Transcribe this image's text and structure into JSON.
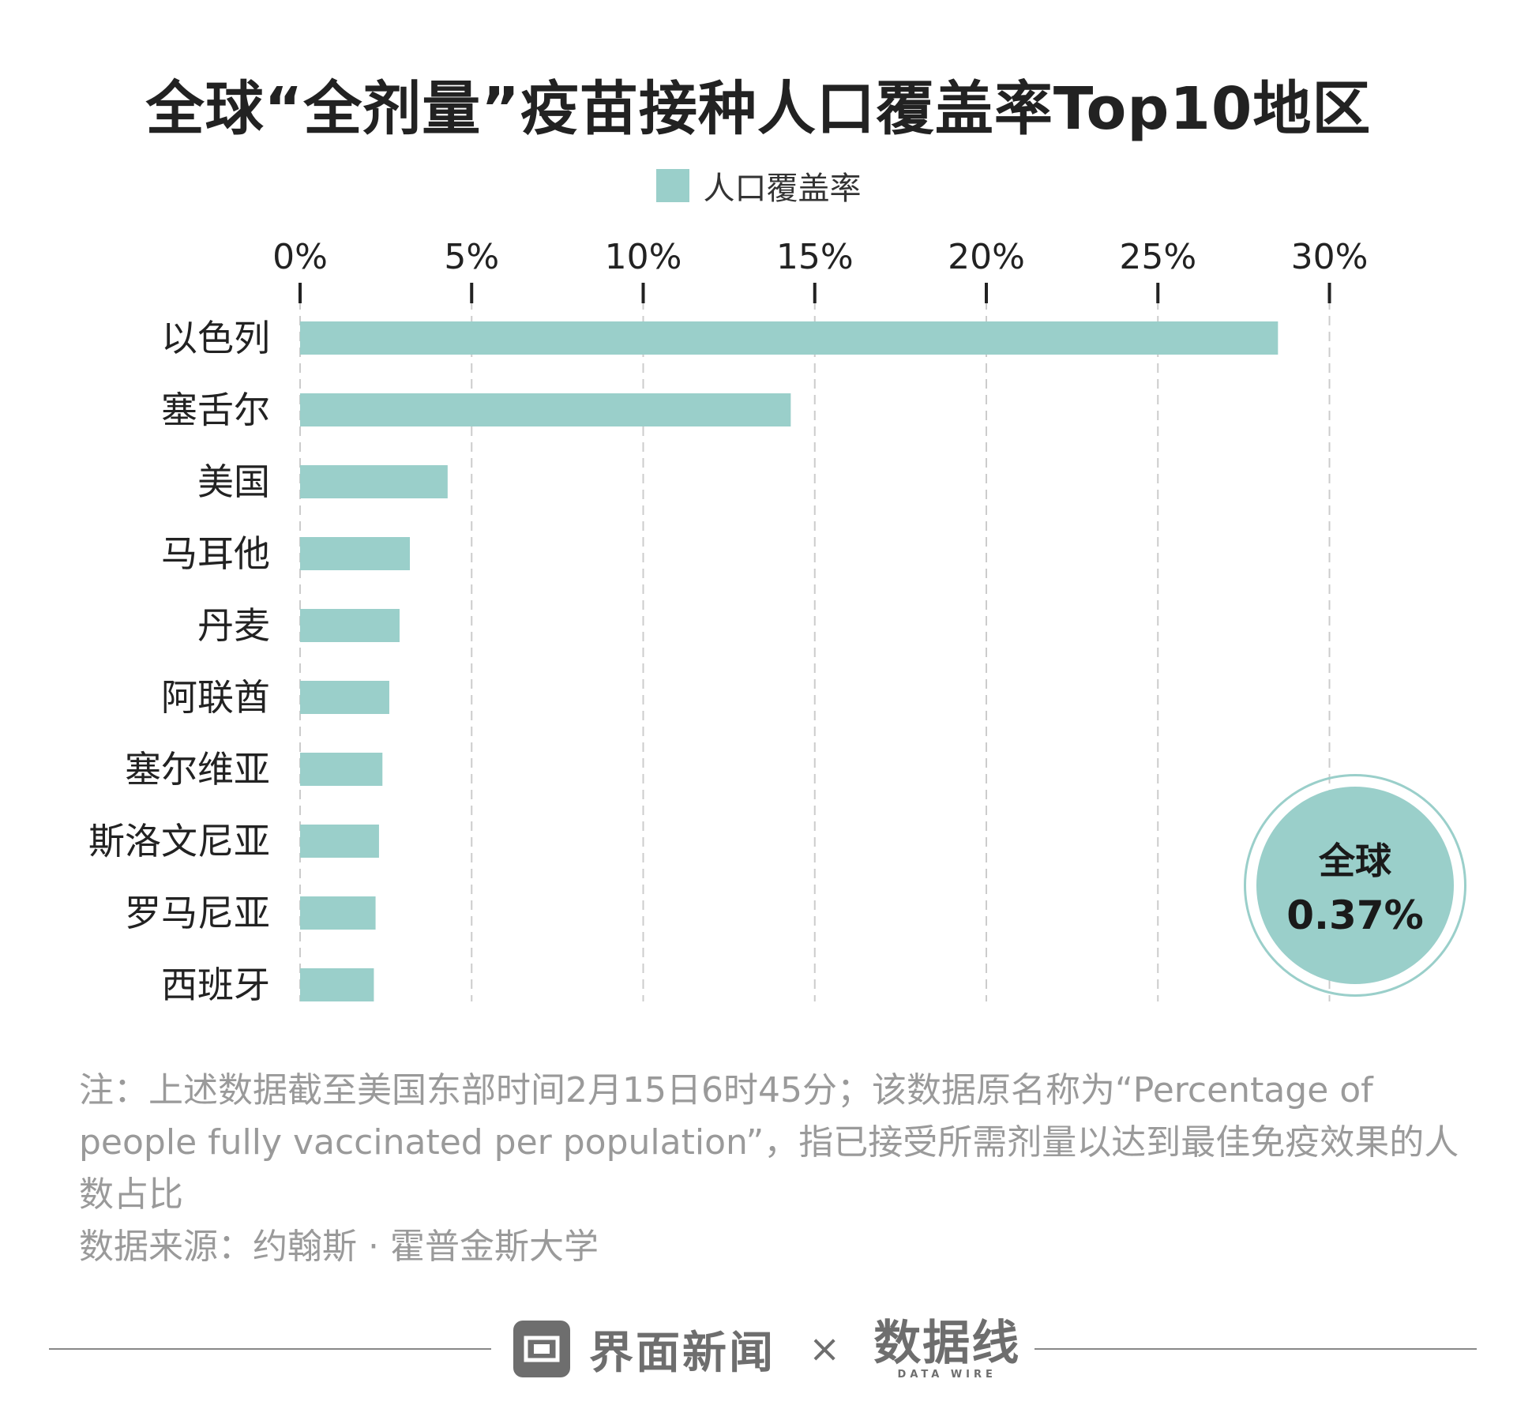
{
  "title": "全球“全剂量”疫苗接种人口覆盖率Top10地区",
  "chart_data": {
    "type": "bar",
    "orientation": "horizontal",
    "categories": [
      "以色列",
      "塞舌尔",
      "美国",
      "马耳他",
      "丹麦",
      "阿联酋",
      "塞尔维亚",
      "斯洛文尼亚",
      "罗马尼亚",
      "西班牙"
    ],
    "series": [
      {
        "name": "人口覆盖率",
        "values": [
          28.5,
          14.3,
          4.3,
          3.2,
          2.9,
          2.6,
          2.4,
          2.3,
          2.2,
          2.15
        ]
      }
    ],
    "xlim": [
      0,
      30
    ],
    "x_ticks": [
      "0%",
      "5%",
      "10%",
      "15%",
      "20%",
      "25%",
      "30%"
    ],
    "grid": true,
    "legend": "top-center"
  },
  "global_badge": {
    "label": "全球",
    "value": "0.37%"
  },
  "note": "注：上述数据截至美国东部时间2月15日6时45分；该数据原名称为“Percentage of people fully vaccinated per population”，指已接受所需剂量以达到最佳免疫效果的人数占比",
  "source": "数据来源：约翰斯 · 霍普金斯大学",
  "footer": {
    "brand": "界面新闻",
    "separator": "×",
    "partner": "数据线",
    "partner_en": "DATA WIRE"
  },
  "colors": {
    "bar": "#9acfca",
    "grid": "#cccccc",
    "axis": "#222222",
    "note": "#9a9a9a"
  }
}
